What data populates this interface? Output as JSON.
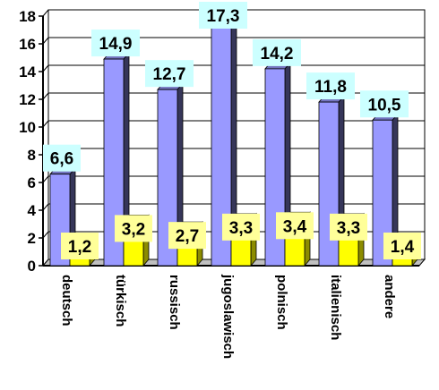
{
  "chart_data": {
    "type": "bar",
    "title": "",
    "xlabel": "",
    "ylabel": "",
    "ylim": [
      0,
      18
    ],
    "yticks": [
      "0",
      "2",
      "4",
      "6",
      "8",
      "10",
      "12",
      "14",
      "16",
      "18"
    ],
    "grid": true,
    "categories": [
      "deutsch",
      "türkisch",
      "russisch",
      "jugoslawisch",
      "polnisch",
      "italienisch",
      "andere"
    ],
    "series": [
      {
        "color": "#9999ff",
        "values": [
          6.6,
          14.9,
          12.7,
          17.3,
          14.2,
          11.8,
          10.5
        ],
        "labels": [
          "6,6",
          "14,9",
          "12,7",
          "17,3",
          "14,2",
          "11,8",
          "10,5"
        ],
        "label_bg": "#ccffff"
      },
      {
        "color": "#ffff00",
        "values": [
          1.2,
          3.2,
          2.7,
          3.3,
          3.4,
          3.3,
          1.4
        ],
        "labels": [
          "1,2",
          "3,2",
          "2,7",
          "3,3",
          "3,4",
          "3,3",
          "1,4"
        ],
        "label_bg": "#ffff99"
      }
    ]
  }
}
